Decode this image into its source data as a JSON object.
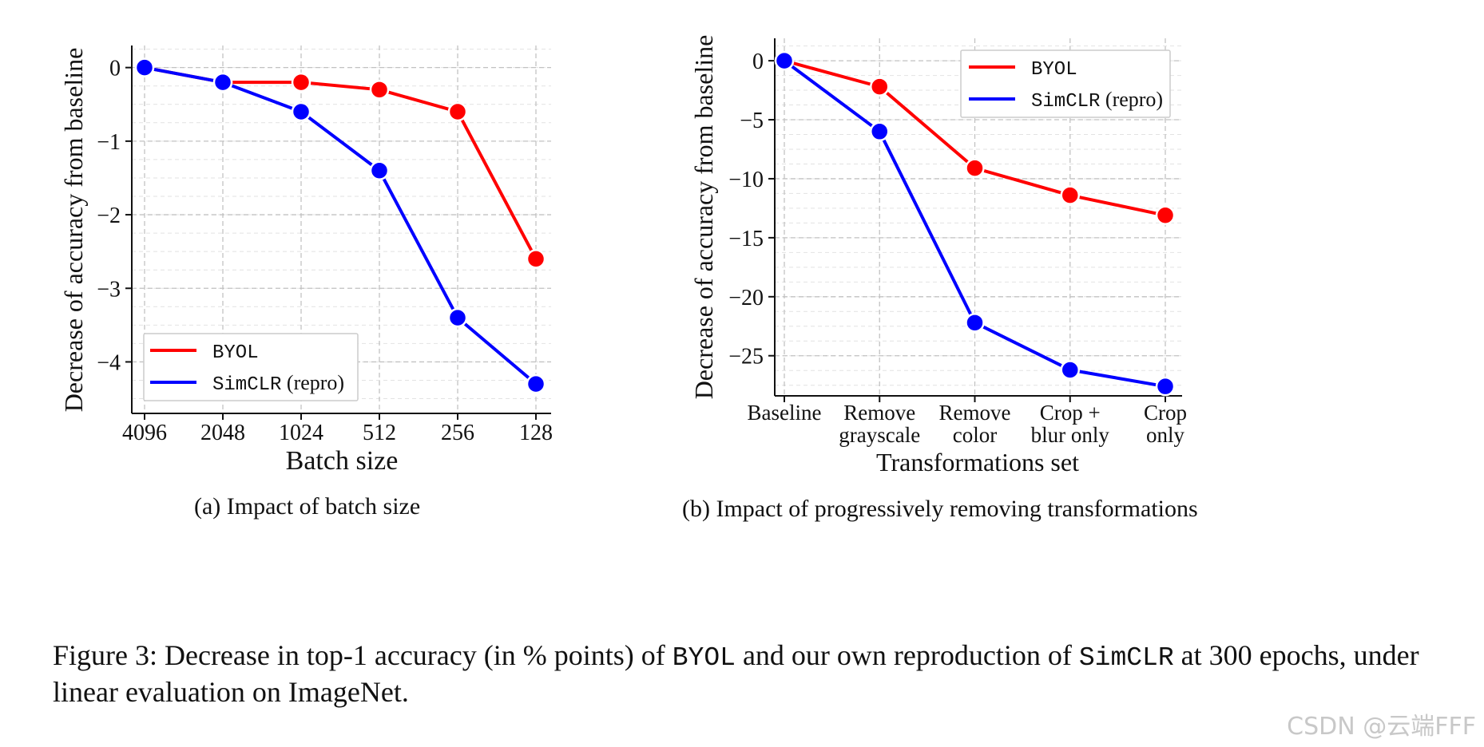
{
  "chart_data": [
    {
      "type": "line",
      "xlabel": "Batch size",
      "ylabel": "Decrease of accuracy from baseline",
      "categories": [
        "4096",
        "2048",
        "1024",
        "512",
        "256",
        "128"
      ],
      "y_ticks": [
        "0",
        "−1",
        "−2",
        "−3",
        "−4"
      ],
      "ylim": [
        -4.7,
        0.3
      ],
      "grid": true,
      "legend_position": "bottom-left",
      "series": [
        {
          "name": "BYOL",
          "color": "#ff0000",
          "values": [
            0,
            -0.2,
            -0.2,
            -0.3,
            -0.6,
            -2.6
          ]
        },
        {
          "name": "SimCLR (repro)",
          "color": "#0000ff",
          "values": [
            0,
            -0.2,
            -0.6,
            -1.4,
            -3.4,
            -4.3
          ]
        }
      ],
      "caption": "(a) Impact of batch size"
    },
    {
      "type": "line",
      "xlabel": "Transformations set",
      "ylabel": "Decrease of accuracy from baseline",
      "categories": [
        [
          "Baseline"
        ],
        [
          "Remove",
          "grayscale"
        ],
        [
          "Remove",
          "color"
        ],
        [
          "Crop +",
          "blur only"
        ],
        [
          "Crop",
          "only"
        ]
      ],
      "y_ticks": [
        "0",
        "−5",
        "−10",
        "−15",
        "−20",
        "−25"
      ],
      "ylim": [
        -28.4,
        1.9
      ],
      "grid": true,
      "legend_position": "top-right",
      "series": [
        {
          "name": "BYOL",
          "color": "#ff0000",
          "values": [
            0,
            -2.2,
            -9.1,
            -11.4,
            -13.1
          ]
        },
        {
          "name": "SimCLR (repro)",
          "color": "#0000ff",
          "values": [
            0,
            -6.0,
            -22.2,
            -26.2,
            -27.6
          ]
        }
      ],
      "caption": "(b) Impact of progressively removing transformations"
    }
  ],
  "figure_caption": {
    "t1": "Figure 3:  Decrease in top-1 accuracy (in % points) of ",
    "m1": "BYOL",
    "t2": " and our own reproduction of ",
    "m2": "SimCLR",
    "t3": " at 300 epochs, under linear evaluation on ImageNet."
  },
  "watermark": "CSDN @云端FFF"
}
